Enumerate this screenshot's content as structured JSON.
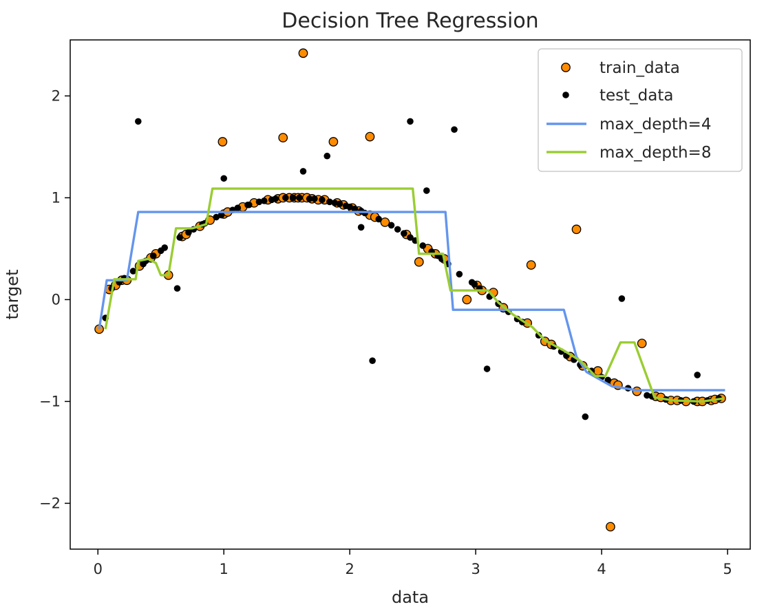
{
  "chart_data": {
    "type": "scatter",
    "title": "Decision Tree Regression",
    "xlabel": "data",
    "ylabel": "target",
    "xlim": [
      -0.22,
      5.18
    ],
    "ylim": [
      -2.45,
      2.55
    ],
    "xticks": [
      0,
      1,
      2,
      3,
      4,
      5
    ],
    "yticks": [
      -2,
      -1,
      0,
      1,
      2
    ],
    "xtick_labels": [
      "0",
      "1",
      "2",
      "3",
      "4",
      "5"
    ],
    "ytick_labels": [
      "−2",
      "−1",
      "0",
      "1",
      "2"
    ],
    "grid": false,
    "legend_position": "top-right",
    "legend": [
      "train_data",
      "test_data",
      "max_depth=4",
      "max_depth=8"
    ],
    "series": [
      {
        "name": "train_data",
        "kind": "scatter",
        "color": "#ff8c00",
        "edge_color": "#000000",
        "points": [
          [
            0.01,
            -0.29
          ],
          [
            0.09,
            0.1
          ],
          [
            0.14,
            0.14
          ],
          [
            0.19,
            0.19
          ],
          [
            0.23,
            0.19
          ],
          [
            0.33,
            0.33
          ],
          [
            0.42,
            0.41
          ],
          [
            0.46,
            0.45
          ],
          [
            0.56,
            0.24
          ],
          [
            0.67,
            0.62
          ],
          [
            0.7,
            0.64
          ],
          [
            0.81,
            0.72
          ],
          [
            0.89,
            0.78
          ],
          [
            0.99,
            1.55
          ],
          [
            1.0,
            0.84
          ],
          [
            1.03,
            0.86
          ],
          [
            1.15,
            0.91
          ],
          [
            1.24,
            0.95
          ],
          [
            1.35,
            0.98
          ],
          [
            1.43,
            0.99
          ],
          [
            1.47,
            1.59
          ],
          [
            1.47,
            1.0
          ],
          [
            1.52,
            1.0
          ],
          [
            1.56,
            1.0
          ],
          [
            1.59,
            1.0
          ],
          [
            1.62,
            1.0
          ],
          [
            1.63,
            2.42
          ],
          [
            1.66,
            1.0
          ],
          [
            1.7,
            0.99
          ],
          [
            1.75,
            0.98
          ],
          [
            1.8,
            0.98
          ],
          [
            1.87,
            1.55
          ],
          [
            1.9,
            0.95
          ],
          [
            1.95,
            0.93
          ],
          [
            2.02,
            0.9
          ],
          [
            2.07,
            0.87
          ],
          [
            2.16,
            1.6
          ],
          [
            2.16,
            0.83
          ],
          [
            2.2,
            0.81
          ],
          [
            2.28,
            0.76
          ],
          [
            2.45,
            0.64
          ],
          [
            2.55,
            0.37
          ],
          [
            2.62,
            0.5
          ],
          [
            2.68,
            0.45
          ],
          [
            2.75,
            0.4
          ],
          [
            2.93,
            0.0
          ],
          [
            3.01,
            0.14
          ],
          [
            3.05,
            0.09
          ],
          [
            3.14,
            0.07
          ],
          [
            3.22,
            -0.08
          ],
          [
            3.41,
            -0.23
          ],
          [
            3.44,
            0.34
          ],
          [
            3.55,
            -0.41
          ],
          [
            3.6,
            -0.44
          ],
          [
            3.75,
            -0.56
          ],
          [
            3.8,
            0.69
          ],
          [
            3.85,
            -0.65
          ],
          [
            3.97,
            -0.7
          ],
          [
            4.07,
            -2.23
          ],
          [
            4.1,
            -0.82
          ],
          [
            4.13,
            -0.84
          ],
          [
            4.28,
            -0.9
          ],
          [
            4.32,
            -0.43
          ],
          [
            4.43,
            -0.95
          ],
          [
            4.47,
            -0.96
          ],
          [
            4.55,
            -0.99
          ],
          [
            4.6,
            -0.99
          ],
          [
            4.67,
            -1.0
          ],
          [
            4.76,
            -1.0
          ],
          [
            4.8,
            -1.0
          ],
          [
            4.87,
            -0.99
          ],
          [
            4.9,
            -0.98
          ],
          [
            4.95,
            -0.97
          ]
        ]
      },
      {
        "name": "test_data",
        "kind": "scatter",
        "color": "#000000",
        "points": [
          [
            0.06,
            -0.18
          ],
          [
            0.11,
            0.11
          ],
          [
            0.17,
            0.17
          ],
          [
            0.21,
            0.21
          ],
          [
            0.28,
            0.28
          ],
          [
            0.32,
            1.75
          ],
          [
            0.36,
            0.35
          ],
          [
            0.38,
            0.38
          ],
          [
            0.44,
            0.43
          ],
          [
            0.5,
            0.48
          ],
          [
            0.53,
            0.51
          ],
          [
            0.63,
            0.11
          ],
          [
            0.65,
            0.61
          ],
          [
            0.72,
            0.66
          ],
          [
            0.76,
            0.69
          ],
          [
            0.83,
            0.74
          ],
          [
            0.85,
            0.75
          ],
          [
            0.94,
            0.81
          ],
          [
            0.98,
            0.83
          ],
          [
            1.0,
            1.19
          ],
          [
            1.07,
            0.88
          ],
          [
            1.11,
            0.9
          ],
          [
            1.19,
            0.93
          ],
          [
            1.2,
            0.93
          ],
          [
            1.28,
            0.96
          ],
          [
            1.32,
            0.97
          ],
          [
            1.38,
            0.98
          ],
          [
            1.41,
            0.99
          ],
          [
            1.49,
            1.0
          ],
          [
            1.55,
            1.0
          ],
          [
            1.6,
            1.0
          ],
          [
            1.63,
            1.26
          ],
          [
            1.68,
            0.99
          ],
          [
            1.72,
            0.99
          ],
          [
            1.78,
            0.98
          ],
          [
            1.82,
            1.41
          ],
          [
            1.84,
            0.96
          ],
          [
            1.88,
            0.95
          ],
          [
            1.92,
            0.94
          ],
          [
            1.97,
            0.92
          ],
          [
            2.0,
            0.91
          ],
          [
            2.04,
            0.89
          ],
          [
            2.09,
            0.87
          ],
          [
            2.09,
            0.71
          ],
          [
            2.12,
            0.85
          ],
          [
            2.18,
            -0.6
          ],
          [
            2.23,
            0.79
          ],
          [
            2.33,
            0.73
          ],
          [
            2.38,
            0.69
          ],
          [
            2.43,
            0.65
          ],
          [
            2.48,
            1.75
          ],
          [
            2.48,
            0.61
          ],
          [
            2.52,
            0.58
          ],
          [
            2.58,
            0.53
          ],
          [
            2.61,
            1.07
          ],
          [
            2.65,
            0.47
          ],
          [
            2.7,
            0.43
          ],
          [
            2.73,
            0.4
          ],
          [
            2.78,
            0.35
          ],
          [
            2.83,
            1.67
          ],
          [
            2.87,
            0.25
          ],
          [
            2.97,
            0.17
          ],
          [
            2.99,
            0.15
          ],
          [
            3.03,
            0.11
          ],
          [
            3.09,
            -0.68
          ],
          [
            3.11,
            0.03
          ],
          [
            3.18,
            -0.04
          ],
          [
            3.26,
            -0.12
          ],
          [
            3.33,
            -0.19
          ],
          [
            3.37,
            -0.22
          ],
          [
            3.5,
            -0.35
          ],
          [
            3.62,
            -0.46
          ],
          [
            3.68,
            -0.51
          ],
          [
            3.72,
            -0.55
          ],
          [
            3.78,
            -0.59
          ],
          [
            3.83,
            -0.64
          ],
          [
            3.87,
            -1.15
          ],
          [
            3.92,
            -0.7
          ],
          [
            4.0,
            -0.76
          ],
          [
            4.05,
            -0.79
          ],
          [
            4.16,
            0.01
          ],
          [
            4.21,
            -0.87
          ],
          [
            4.36,
            -0.94
          ],
          [
            4.4,
            -0.95
          ],
          [
            4.51,
            -0.98
          ],
          [
            4.63,
            -0.99
          ],
          [
            4.73,
            -1.0
          ],
          [
            4.76,
            -0.74
          ],
          [
            4.84,
            -0.99
          ],
          [
            4.93,
            -0.97
          ]
        ]
      },
      {
        "name": "max_depth=4",
        "kind": "line",
        "color": "#6495ed",
        "points": [
          [
            0.01,
            -0.29
          ],
          [
            0.07,
            0.19
          ],
          [
            0.13,
            0.19
          ],
          [
            0.23,
            0.19
          ],
          [
            0.32,
            0.86
          ],
          [
            2.76,
            0.86
          ],
          [
            2.82,
            -0.1
          ],
          [
            3.7,
            -0.1
          ],
          [
            3.8,
            -0.56
          ],
          [
            3.88,
            -0.71
          ],
          [
            4.08,
            -0.85
          ],
          [
            4.28,
            -0.89
          ],
          [
            4.4,
            -0.89
          ],
          [
            4.98,
            -0.89
          ]
        ]
      },
      {
        "name": "max_depth=8",
        "kind": "line",
        "color": "#9acd32",
        "points": [
          [
            0.06,
            -0.29
          ],
          [
            0.13,
            0.2
          ],
          [
            0.3,
            0.2
          ],
          [
            0.32,
            0.38
          ],
          [
            0.4,
            0.4
          ],
          [
            0.46,
            0.36
          ],
          [
            0.5,
            0.24
          ],
          [
            0.56,
            0.24
          ],
          [
            0.62,
            0.7
          ],
          [
            0.75,
            0.7
          ],
          [
            0.86,
            0.74
          ],
          [
            0.91,
            1.09
          ],
          [
            2.5,
            1.09
          ],
          [
            2.55,
            0.45
          ],
          [
            2.74,
            0.45
          ],
          [
            2.8,
            0.09
          ],
          [
            3.1,
            0.09
          ],
          [
            3.18,
            -0.03
          ],
          [
            3.3,
            -0.15
          ],
          [
            3.45,
            -0.27
          ],
          [
            3.55,
            -0.4
          ],
          [
            3.7,
            -0.5
          ],
          [
            3.83,
            -0.6
          ],
          [
            3.95,
            -0.75
          ],
          [
            4.03,
            -0.75
          ],
          [
            4.15,
            -0.42
          ],
          [
            4.26,
            -0.42
          ],
          [
            4.42,
            -0.96
          ],
          [
            4.57,
            -0.99
          ],
          [
            4.8,
            -1.0
          ],
          [
            4.97,
            -0.97
          ]
        ]
      }
    ]
  }
}
